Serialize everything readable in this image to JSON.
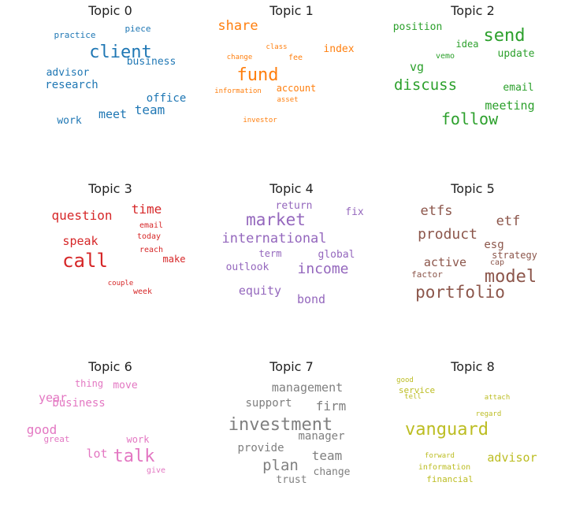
{
  "chart_data": {
    "type": "wordcloud",
    "title": "",
    "panels": [
      {
        "title": "Topic 0",
        "color": "#1f77b4",
        "words": [
          {
            "text": "piece",
            "size": 11
          },
          {
            "text": "practice",
            "size": 11
          },
          {
            "text": "client",
            "size": 22
          },
          {
            "text": "business",
            "size": 13
          },
          {
            "text": "advisor",
            "size": 13
          },
          {
            "text": "research",
            "size": 14
          },
          {
            "text": "office",
            "size": 14
          },
          {
            "text": "team",
            "size": 16
          },
          {
            "text": "meet",
            "size": 15
          },
          {
            "text": "work",
            "size": 13
          }
        ]
      },
      {
        "title": "Topic 1",
        "color": "#ff7f0e",
        "words": [
          {
            "text": "share",
            "size": 17
          },
          {
            "text": "class",
            "size": 9
          },
          {
            "text": "index",
            "size": 13
          },
          {
            "text": "change",
            "size": 9
          },
          {
            "text": "fee",
            "size": 10
          },
          {
            "text": "fund",
            "size": 22
          },
          {
            "text": "account",
            "size": 12
          },
          {
            "text": "information",
            "size": 9
          },
          {
            "text": "asset",
            "size": 9
          },
          {
            "text": "investor",
            "size": 9
          }
        ]
      },
      {
        "title": "Topic 2",
        "color": "#2ca02c",
        "words": [
          {
            "text": "position",
            "size": 13
          },
          {
            "text": "send",
            "size": 22
          },
          {
            "text": "idea",
            "size": 12
          },
          {
            "text": "vemo",
            "size": 10
          },
          {
            "text": "update",
            "size": 13
          },
          {
            "text": "vg",
            "size": 15
          },
          {
            "text": "discuss",
            "size": 19
          },
          {
            "text": "email",
            "size": 13
          },
          {
            "text": "meeting",
            "size": 15
          },
          {
            "text": "follow",
            "size": 20
          }
        ]
      },
      {
        "title": "Topic 3",
        "color": "#d62728",
        "words": [
          {
            "text": "time",
            "size": 16
          },
          {
            "text": "question",
            "size": 16
          },
          {
            "text": "email",
            "size": 10
          },
          {
            "text": "today",
            "size": 10
          },
          {
            "text": "speak",
            "size": 15
          },
          {
            "text": "call",
            "size": 24
          },
          {
            "text": "reach",
            "size": 10
          },
          {
            "text": "make",
            "size": 12
          },
          {
            "text": "couple",
            "size": 9
          },
          {
            "text": "week",
            "size": 10
          }
        ]
      },
      {
        "title": "Topic 4",
        "color": "#9467bd",
        "words": [
          {
            "text": "return",
            "size": 13
          },
          {
            "text": "fix",
            "size": 13
          },
          {
            "text": "market",
            "size": 21
          },
          {
            "text": "international",
            "size": 17
          },
          {
            "text": "term",
            "size": 12
          },
          {
            "text": "global",
            "size": 13
          },
          {
            "text": "outlook",
            "size": 13
          },
          {
            "text": "income",
            "size": 18
          },
          {
            "text": "equity",
            "size": 15
          },
          {
            "text": "bond",
            "size": 15
          }
        ]
      },
      {
        "title": "Topic 5",
        "color": "#8c564b",
        "words": [
          {
            "text": "etfs",
            "size": 17
          },
          {
            "text": "etf",
            "size": 17
          },
          {
            "text": "product",
            "size": 18
          },
          {
            "text": "esg",
            "size": 14
          },
          {
            "text": "strategy",
            "size": 12
          },
          {
            "text": "cap",
            "size": 10
          },
          {
            "text": "active",
            "size": 15
          },
          {
            "text": "factor",
            "size": 11
          },
          {
            "text": "model",
            "size": 22
          },
          {
            "text": "portfolio",
            "size": 21
          }
        ]
      },
      {
        "title": "Topic 6",
        "color": "#e377c2",
        "words": [
          {
            "text": "thing",
            "size": 12
          },
          {
            "text": "move",
            "size": 13
          },
          {
            "text": "year",
            "size": 15
          },
          {
            "text": "business",
            "size": 14
          },
          {
            "text": "good",
            "size": 16
          },
          {
            "text": "great",
            "size": 11
          },
          {
            "text": "work",
            "size": 12
          },
          {
            "text": "lot",
            "size": 15
          },
          {
            "text": "talk",
            "size": 22
          },
          {
            "text": "give",
            "size": 10
          }
        ]
      },
      {
        "title": "Topic 7",
        "color": "#7f7f7f",
        "words": [
          {
            "text": "management",
            "size": 15
          },
          {
            "text": "support",
            "size": 14
          },
          {
            "text": "firm",
            "size": 16
          },
          {
            "text": "investment",
            "size": 22
          },
          {
            "text": "manager",
            "size": 14
          },
          {
            "text": "provide",
            "size": 14
          },
          {
            "text": "team",
            "size": 16
          },
          {
            "text": "plan",
            "size": 19
          },
          {
            "text": "change",
            "size": 13
          },
          {
            "text": "trust",
            "size": 13
          }
        ]
      },
      {
        "title": "Topic 8",
        "color": "#bcbd22",
        "words": [
          {
            "text": "good",
            "size": 9
          },
          {
            "text": "service",
            "size": 11
          },
          {
            "text": "tell",
            "size": 9
          },
          {
            "text": "attach",
            "size": 9
          },
          {
            "text": "regard",
            "size": 9
          },
          {
            "text": "vanguard",
            "size": 22
          },
          {
            "text": "forward",
            "size": 9
          },
          {
            "text": "advisor",
            "size": 15
          },
          {
            "text": "information",
            "size": 10
          },
          {
            "text": "financial",
            "size": 11
          }
        ]
      }
    ]
  }
}
